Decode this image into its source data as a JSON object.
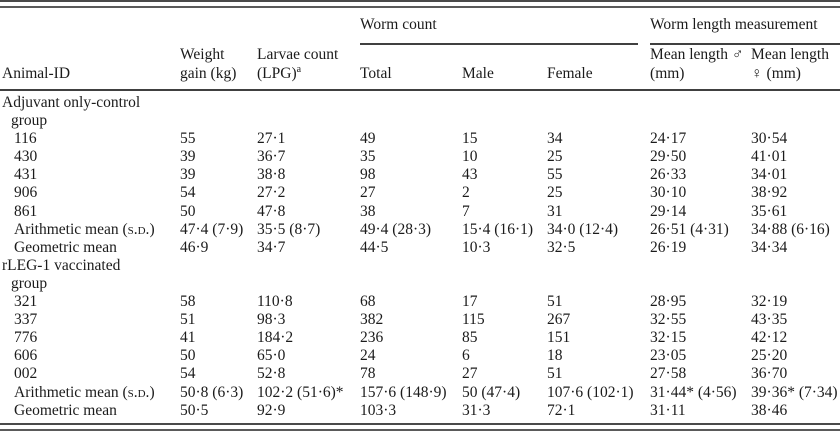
{
  "header": {
    "animal_id": "Animal-ID",
    "weight_gain": "Weight gain (kg)",
    "larvae_count": "Larvae count (LPG)",
    "larvae_sup": "a",
    "worm_count_spanner": "Worm count",
    "worm_length_spanner": "Worm length measurement",
    "total": "Total",
    "male": "Male",
    "female": "Female",
    "mean_length_male": "Mean length ♂ (mm)",
    "mean_length_female": "Mean length ♀ (mm)"
  },
  "groups": [
    {
      "label_lines": [
        "Adjuvant only-control",
        "group"
      ],
      "rows": [
        {
          "id": "116",
          "values": [
            "55",
            "27·1",
            "49",
            "15",
            "34",
            "24·17",
            "30·54"
          ]
        },
        {
          "id": "430",
          "values": [
            "39",
            "36·7",
            "35",
            "10",
            "25",
            "29·50",
            "41·01"
          ]
        },
        {
          "id": "431",
          "values": [
            "39",
            "38·8",
            "98",
            "43",
            "55",
            "26·33",
            "34·01"
          ]
        },
        {
          "id": "906",
          "values": [
            "54",
            "27·2",
            "27",
            "2",
            "25",
            "30·10",
            "38·92"
          ]
        },
        {
          "id": "861",
          "values": [
            "50",
            "47·8",
            "38",
            "7",
            "31",
            "29·14",
            "35·61"
          ]
        },
        {
          "id_parts": [
            {
              "t": "Arithmetic mean ("
            },
            {
              "t": "s.d.",
              "small_caps": true
            },
            {
              "t": ")"
            }
          ],
          "values": [
            "47·4 (7·9)",
            "35·5 (8·7)",
            "49·4 (28·3)",
            "15·4 (16·1)",
            "34·0 (12·4)",
            "26·51 (4·31)",
            "34·88 (6·16)"
          ]
        },
        {
          "id": "Geometric mean",
          "values": [
            "46·9",
            "34·7",
            "44·5",
            "10·3",
            "32·5",
            "26·19",
            "34·34"
          ]
        }
      ]
    },
    {
      "label_lines": [
        "rLEG-1 vaccinated",
        "group"
      ],
      "rows": [
        {
          "id": "321",
          "values": [
            "58",
            "110·8",
            "68",
            "17",
            "51",
            "28·95",
            "32·19"
          ]
        },
        {
          "id": "337",
          "values": [
            "51",
            "98·3",
            "382",
            "115",
            "267",
            "32·55",
            "43·35"
          ]
        },
        {
          "id": "776",
          "values": [
            "41",
            "184·2",
            "236",
            "85",
            "151",
            "32·15",
            "42·12"
          ]
        },
        {
          "id": "606",
          "values": [
            "50",
            "65·0",
            "24",
            "6",
            "18",
            "23·05",
            "25·20"
          ]
        },
        {
          "id": "002",
          "values": [
            "54",
            "52·8",
            "78",
            "27",
            "51",
            "27·58",
            "36·70"
          ]
        },
        {
          "id_parts": [
            {
              "t": "Arithmetic mean ("
            },
            {
              "t": "s.d.",
              "small_caps": true
            },
            {
              "t": ")"
            }
          ],
          "values": [
            "50·8 (6·3)",
            "102·2 (51·6)*",
            "157·6 (148·9)",
            "50 (47·4)",
            "107·6 (102·1)",
            "31·44* (4·56)",
            "39·36* (7·34)"
          ]
        },
        {
          "id": "Geometric mean",
          "values": [
            "50·5",
            "92·9",
            "103·3",
            "31·3",
            "72·1",
            "31·11",
            "38·46"
          ]
        }
      ]
    }
  ]
}
